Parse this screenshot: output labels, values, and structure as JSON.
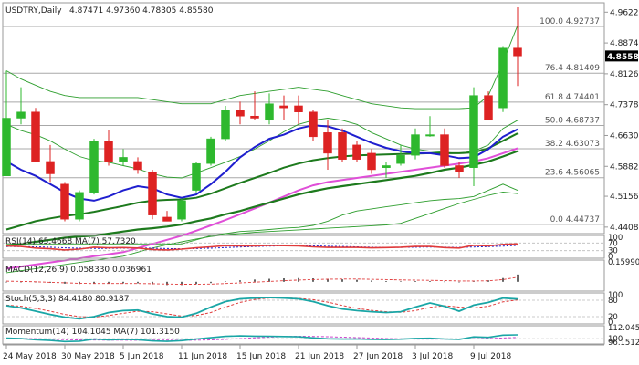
{
  "header": {
    "symbol_timeframe": "USDTRY,Daily",
    "ohlc": "4.87471 4.97360 4.78305 4.85580"
  },
  "current_price": {
    "label": "4.85580",
    "value": 4.8558
  },
  "price_axis": {
    "min": 4.425,
    "max": 4.985,
    "ticks": [
      {
        "label": "4.96220",
        "value": 4.9622
      },
      {
        "label": "4.88740",
        "value": 4.8874
      },
      {
        "label": "4.81260",
        "value": 4.8126
      },
      {
        "label": "4.73780",
        "value": 4.7378
      },
      {
        "label": "4.66300",
        "value": 4.663
      },
      {
        "label": "4.58820",
        "value": 4.5882
      },
      {
        "label": "4.51560",
        "value": 4.5156
      },
      {
        "label": "4.44080",
        "value": 4.4408
      }
    ]
  },
  "fib_levels": [
    {
      "label": "100.0 4.92737",
      "value": 4.92737
    },
    {
      "label": "76.4 4.81409",
      "value": 4.81409
    },
    {
      "label": "61.8 4.74401",
      "value": 4.74401
    },
    {
      "label": "50.0 4.68737",
      "value": 4.68737
    },
    {
      "label": "38.2 4.63073",
      "value": 4.63073
    },
    {
      "label": "23.6 4.56065",
      "value": 4.56065
    },
    {
      "label": "0.0 4.44737",
      "value": 4.44737
    }
  ],
  "date_labels": [
    "24 May 2018",
    "30 May 2018",
    "5 Jun 2018",
    "11 Jun 2018",
    "15 Jun 2018",
    "21 Jun 2018",
    "27 Jun 2018",
    "3 Jul 2018",
    "9 Jul 2018"
  ],
  "chart_data": {
    "type": "candlestick",
    "candles": [
      {
        "o": 4.565,
        "h": 4.82,
        "l": 4.565,
        "c": 4.705
      },
      {
        "o": 4.705,
        "h": 4.78,
        "l": 4.69,
        "c": 4.72
      },
      {
        "o": 4.72,
        "h": 4.73,
        "l": 4.6,
        "c": 4.6
      },
      {
        "o": 4.6,
        "h": 4.64,
        "l": 4.55,
        "c": 4.57
      },
      {
        "o": 4.545,
        "h": 4.55,
        "l": 4.455,
        "c": 4.46
      },
      {
        "o": 4.46,
        "h": 4.53,
        "l": 4.455,
        "c": 4.525
      },
      {
        "o": 4.525,
        "h": 4.655,
        "l": 4.52,
        "c": 4.65
      },
      {
        "o": 4.65,
        "h": 4.675,
        "l": 4.59,
        "c": 4.6
      },
      {
        "o": 4.6,
        "h": 4.63,
        "l": 4.59,
        "c": 4.61
      },
      {
        "o": 4.6,
        "h": 4.61,
        "l": 4.57,
        "c": 4.58
      },
      {
        "o": 4.575,
        "h": 4.58,
        "l": 4.46,
        "c": 4.47
      },
      {
        "o": 4.465,
        "h": 4.48,
        "l": 4.455,
        "c": 4.455
      },
      {
        "o": 4.46,
        "h": 4.51,
        "l": 4.455,
        "c": 4.505
      },
      {
        "o": 4.53,
        "h": 4.6,
        "l": 4.525,
        "c": 4.595
      },
      {
        "o": 4.595,
        "h": 4.66,
        "l": 4.59,
        "c": 4.655
      },
      {
        "o": 4.655,
        "h": 4.735,
        "l": 4.65,
        "c": 4.725
      },
      {
        "o": 4.725,
        "h": 4.745,
        "l": 4.69,
        "c": 4.71
      },
      {
        "o": 4.71,
        "h": 4.77,
        "l": 4.7,
        "c": 4.705
      },
      {
        "o": 4.7,
        "h": 4.765,
        "l": 4.69,
        "c": 4.74
      },
      {
        "o": 4.735,
        "h": 4.76,
        "l": 4.7,
        "c": 4.73
      },
      {
        "o": 4.735,
        "h": 4.76,
        "l": 4.69,
        "c": 4.72
      },
      {
        "o": 4.72,
        "h": 4.725,
        "l": 4.65,
        "c": 4.66
      },
      {
        "o": 4.67,
        "h": 4.7,
        "l": 4.58,
        "c": 4.62
      },
      {
        "o": 4.67,
        "h": 4.68,
        "l": 4.6,
        "c": 4.605
      },
      {
        "o": 4.64,
        "h": 4.65,
        "l": 4.6,
        "c": 4.605
      },
      {
        "o": 4.62,
        "h": 4.63,
        "l": 4.57,
        "c": 4.58
      },
      {
        "o": 4.585,
        "h": 4.6,
        "l": 4.56,
        "c": 4.59
      },
      {
        "o": 4.595,
        "h": 4.64,
        "l": 4.59,
        "c": 4.615
      },
      {
        "o": 4.615,
        "h": 4.68,
        "l": 4.605,
        "c": 4.665
      },
      {
        "o": 4.665,
        "h": 4.71,
        "l": 4.66,
        "c": 4.665
      },
      {
        "o": 4.665,
        "h": 4.68,
        "l": 4.585,
        "c": 4.59
      },
      {
        "o": 4.59,
        "h": 4.6,
        "l": 4.56,
        "c": 4.575
      },
      {
        "o": 4.585,
        "h": 4.78,
        "l": 4.54,
        "c": 4.76
      },
      {
        "o": 4.76,
        "h": 4.77,
        "l": 4.7,
        "c": 4.7
      },
      {
        "o": 4.73,
        "h": 4.88,
        "l": 4.72,
        "c": 4.875
      },
      {
        "o": 4.875,
        "h": 4.974,
        "l": 4.783,
        "c": 4.856
      }
    ],
    "bb_upper": [
      4.82,
      4.8,
      4.785,
      4.77,
      4.76,
      4.755,
      4.755,
      4.755,
      4.755,
      4.755,
      4.75,
      4.745,
      4.74,
      4.74,
      4.74,
      4.75,
      4.76,
      4.765,
      4.77,
      4.775,
      4.78,
      4.775,
      4.77,
      4.76,
      4.75,
      4.74,
      4.735,
      4.73,
      4.728,
      4.728,
      4.728,
      4.728,
      4.73,
      4.76,
      4.84,
      4.93
    ],
    "bb_lower": [
      4.4,
      4.4,
      4.4,
      4.4,
      4.4,
      4.4,
      4.4,
      4.4,
      4.4,
      4.4,
      4.4,
      4.4,
      4.4,
      4.41,
      4.42,
      4.425,
      4.43,
      4.432,
      4.435,
      4.438,
      4.44,
      4.445,
      4.455,
      4.47,
      4.48,
      4.485,
      4.49,
      4.495,
      4.5,
      4.505,
      4.508,
      4.51,
      4.515,
      4.53,
      4.545,
      4.53
    ],
    "bb_mid": [
      4.69,
      4.675,
      4.665,
      4.65,
      4.63,
      4.612,
      4.602,
      4.598,
      4.59,
      4.582,
      4.57,
      4.562,
      4.56,
      4.572,
      4.585,
      4.598,
      4.612,
      4.63,
      4.65,
      4.672,
      4.69,
      4.7,
      4.705,
      4.7,
      4.69,
      4.67,
      4.655,
      4.64,
      4.63,
      4.625,
      4.622,
      4.62,
      4.625,
      4.64,
      4.68,
      4.7
    ],
    "ma_fast": [
      4.6,
      4.58,
      4.565,
      4.545,
      4.525,
      4.51,
      4.505,
      4.515,
      4.53,
      4.54,
      4.535,
      4.52,
      4.512,
      4.52,
      4.545,
      4.575,
      4.61,
      4.635,
      4.655,
      4.665,
      4.68,
      4.688,
      4.685,
      4.675,
      4.66,
      4.645,
      4.633,
      4.625,
      4.62,
      4.62,
      4.615,
      4.608,
      4.61,
      4.63,
      4.66,
      4.678
    ],
    "ma_mid": [
      4.435,
      4.445,
      4.455,
      4.462,
      4.468,
      4.472,
      4.478,
      4.485,
      4.492,
      4.5,
      4.505,
      4.507,
      4.508,
      4.512,
      4.522,
      4.535,
      4.548,
      4.56,
      4.572,
      4.585,
      4.595,
      4.603,
      4.608,
      4.612,
      4.615,
      4.616,
      4.617,
      4.618,
      4.619,
      4.62,
      4.62,
      4.62,
      4.622,
      4.632,
      4.65,
      4.668
    ],
    "ma_slow": [
      4.395,
      4.4,
      4.405,
      4.41,
      4.415,
      4.418,
      4.42,
      4.425,
      4.43,
      4.435,
      4.438,
      4.442,
      4.447,
      4.455,
      4.462,
      4.472,
      4.48,
      4.49,
      4.5,
      4.51,
      4.52,
      4.528,
      4.535,
      4.54,
      4.545,
      4.55,
      4.555,
      4.56,
      4.565,
      4.572,
      4.58,
      4.585,
      4.592,
      4.6,
      4.612,
      4.625
    ],
    "ma_magenta": [
      4.34,
      4.345,
      4.35,
      4.355,
      4.36,
      4.365,
      4.37,
      4.375,
      4.38,
      4.39,
      4.4,
      4.41,
      4.42,
      4.432,
      4.445,
      4.458,
      4.472,
      4.486,
      4.5,
      4.515,
      4.53,
      4.542,
      4.55,
      4.555,
      4.56,
      4.565,
      4.57,
      4.575,
      4.58,
      4.585,
      4.59,
      4.595,
      4.6,
      4.608,
      4.62,
      4.632
    ],
    "ma_low": [
      4.33,
      4.335,
      4.34,
      4.345,
      4.35,
      4.355,
      4.36,
      4.365,
      4.37,
      4.38,
      4.39,
      4.398,
      4.405,
      4.412,
      4.418,
      4.422,
      4.425,
      4.428,
      4.43,
      4.432,
      4.434,
      4.436,
      4.438,
      4.44,
      4.442,
      4.444,
      4.446,
      4.45,
      4.462,
      4.474,
      4.486,
      4.498,
      4.508,
      4.518,
      4.526,
      4.522
    ],
    "rsi": [
      55,
      52,
      44,
      40,
      34,
      38,
      48,
      45,
      46,
      44,
      36,
      34,
      38,
      45,
      50,
      56,
      55,
      55,
      57,
      56,
      55,
      50,
      47,
      47,
      47,
      45,
      46,
      48,
      52,
      52,
      46,
      44,
      58,
      55,
      63,
      65.4668
    ],
    "rsi_ma": [
      52,
      51,
      50,
      48,
      45,
      43,
      42,
      42,
      43,
      44,
      43,
      41,
      40,
      41,
      43,
      46,
      49,
      52,
      54,
      55,
      56,
      55,
      53,
      52,
      50,
      48,
      47,
      47,
      48,
      49,
      48,
      47,
      49,
      51,
      54,
      57.732
    ],
    "macd_hist": [
      0.0,
      0.0,
      -0.004,
      -0.008,
      -0.015,
      -0.018,
      -0.015,
      -0.014,
      -0.012,
      -0.012,
      -0.02,
      -0.026,
      -0.026,
      -0.018,
      -0.01,
      0.004,
      0.012,
      0.018,
      0.024,
      0.028,
      0.03,
      0.028,
      0.024,
      0.02,
      0.016,
      0.01,
      0.006,
      0.004,
      0.006,
      0.006,
      0.002,
      -0.004,
      0.008,
      0.012,
      0.03,
      0.05833
    ],
    "macd_signal": [
      0.005,
      0.003,
      0.0,
      -0.004,
      -0.008,
      -0.012,
      -0.014,
      -0.014,
      -0.014,
      -0.014,
      -0.015,
      -0.018,
      -0.02,
      -0.02,
      -0.018,
      -0.014,
      -0.009,
      -0.003,
      0.003,
      0.009,
      0.014,
      0.018,
      0.021,
      0.022,
      0.022,
      0.02,
      0.018,
      0.015,
      0.013,
      0.012,
      0.01,
      0.007,
      0.007,
      0.008,
      0.018,
      0.03696
    ],
    "stoch_k": [
      60,
      52,
      40,
      28,
      18,
      12,
      20,
      35,
      42,
      44,
      30,
      20,
      18,
      32,
      55,
      75,
      85,
      88,
      90,
      88,
      85,
      75,
      60,
      48,
      42,
      38,
      35,
      38,
      55,
      70,
      58,
      40,
      62,
      72,
      88,
      84.418
    ],
    "stoch_d": [
      62,
      58,
      50,
      40,
      28,
      20,
      18,
      24,
      32,
      40,
      38,
      30,
      22,
      24,
      35,
      55,
      72,
      83,
      88,
      88,
      87,
      82,
      73,
      61,
      50,
      43,
      38,
      36,
      42,
      54,
      60,
      55,
      52,
      58,
      74,
      80.9187
    ],
    "momentum": [
      100.5,
      100.0,
      98.8,
      98.0,
      96.8,
      97.2,
      99.5,
      98.7,
      99.1,
      98.8,
      97.5,
      97.0,
      97.8,
      99.5,
      101.0,
      102.5,
      103.0,
      102.7,
      102.5,
      102.3,
      102.0,
      100.8,
      99.8,
      99.5,
      99.6,
      99.2,
      99.0,
      99.4,
      100.2,
      100.4,
      99.6,
      99.2,
      101.9,
      101.4,
      103.8,
      104.1045
    ],
    "momentum_ma": [
      100.4,
      100.2,
      99.9,
      99.4,
      98.9,
      98.5,
      98.5,
      98.3,
      98.3,
      98.2,
      98.3,
      98.3,
      98.2,
      98.3,
      98.6,
      99.2,
      100.0,
      100.8,
      101.6,
      102.2,
      102.6,
      102.4,
      102.1,
      101.6,
      101.1,
      100.6,
      100.1,
      99.7,
      99.5,
      99.5,
      99.5,
      99.5,
      99.8,
      100.1,
      100.7,
      101.315
    ]
  },
  "panels": {
    "rsi": {
      "label": "RSI(14) 65.4668  MA(7) 57.7320",
      "axis_ticks": [
        {
          "label": "100",
          "value": 100
        },
        {
          "label": "70",
          "value": 70
        },
        {
          "label": "30",
          "value": 30
        },
        {
          "label": "0",
          "value": 0
        }
      ]
    },
    "macd": {
      "label": "MACD(12,26,9) 0.058330 0.036961",
      "axis_ticks": [
        {
          "label": "0.159907",
          "value": 0.159907
        }
      ]
    },
    "stoch": {
      "label": "Stoch(5,3,3) 84.4180 80.9187",
      "axis_ticks": [
        {
          "label": "100",
          "value": 100
        },
        {
          "label": "80",
          "value": 80
        },
        {
          "label": "20",
          "value": 20
        },
        {
          "label": "0",
          "value": 0
        }
      ]
    },
    "momentum": {
      "label": "Momentum(14) 104.1045  MA(7) 101.3150",
      "axis_ticks": [
        {
          "label": "112.0454",
          "value": 112.0454
        },
        {
          "label": "100",
          "value": 100
        },
        {
          "label": "96.1512",
          "value": 96.1512
        }
      ]
    }
  },
  "colors": {
    "bull": "#2eb82e",
    "bear": "#dd2222",
    "bollinger": "#2e9e2e",
    "ma_fast": "#1f1fcf",
    "ma_mid": "#1d7a1d",
    "ma_magenta": "#e04fd8",
    "rsi_line": "#e03b3b",
    "macd_signal": "#e03b3b",
    "stoch_k": "#1aa6a6",
    "stoch_d": "#e03b3b",
    "momentum_line": "#1aa6a6",
    "momentum_ma": "#cc44cc",
    "frame": "#9a9a9a",
    "fib": "#a8a8a8"
  }
}
